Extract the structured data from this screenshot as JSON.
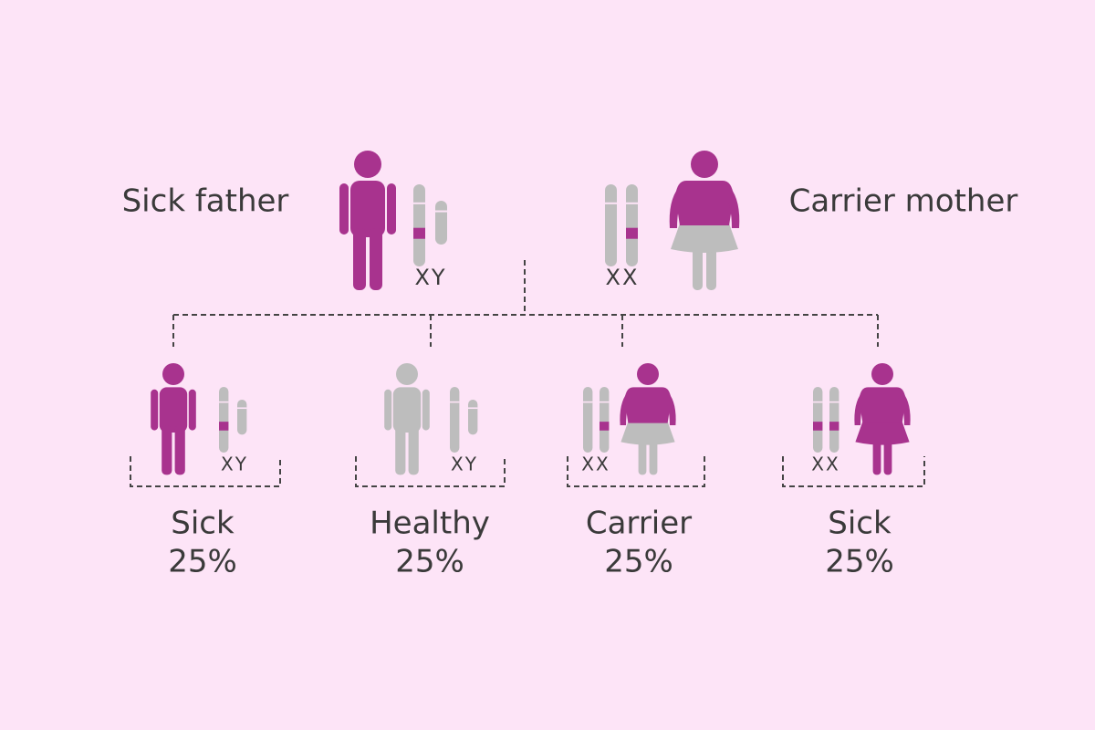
{
  "parents": [
    {
      "label": "Sick father",
      "chromosomes": "XY"
    },
    {
      "label": "Carrier mother",
      "chromosomes": "XX"
    }
  ],
  "children": [
    {
      "label": "Sick",
      "chromosomes": "XY",
      "probability": "25%"
    },
    {
      "label": "Healthy",
      "chromosomes": "XY",
      "probability": "25%"
    },
    {
      "label": "Carrier",
      "chromosomes": "XX",
      "probability": "25%"
    },
    {
      "label": "Sick",
      "chromosomes": "XX",
      "probability": "25%"
    }
  ]
}
